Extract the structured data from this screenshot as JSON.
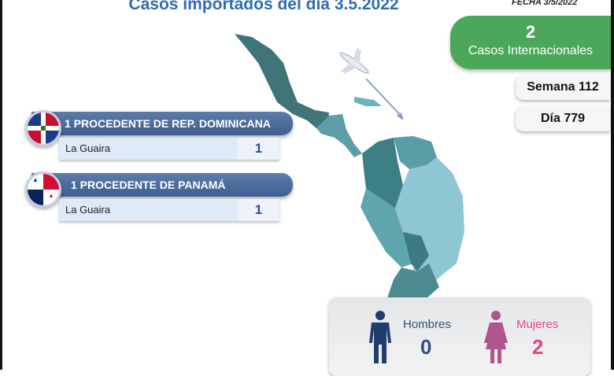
{
  "title": "Casos importados del día 3.5.2022",
  "fecha": "FECHA 3/5/2022",
  "international": {
    "count": "2",
    "label": "Casos Internacionales"
  },
  "semana": "Semana 112",
  "dia": "Día 779",
  "origins": [
    {
      "label": "1 PROCEDENTE DE REP. DOMINICANA",
      "flag": "dominican-republic-flag",
      "city": "La Guaira",
      "count": "1"
    },
    {
      "label": "1 PROCEDENTE DE PANAMÁ",
      "flag": "panama-flag",
      "city": "La Guaira",
      "count": "1"
    }
  ],
  "gender": {
    "men": {
      "label": "Hombres",
      "count": "0",
      "color": "#2f4f86"
    },
    "women": {
      "label": "Mujeres",
      "count": "2",
      "color": "#e0468f"
    }
  },
  "colors": {
    "title": "#2f6cb3",
    "green": "#4ba85a",
    "banner": "#4a6a9a",
    "map_dark": "#3f7d80",
    "map_light": "#8ec6d3"
  }
}
